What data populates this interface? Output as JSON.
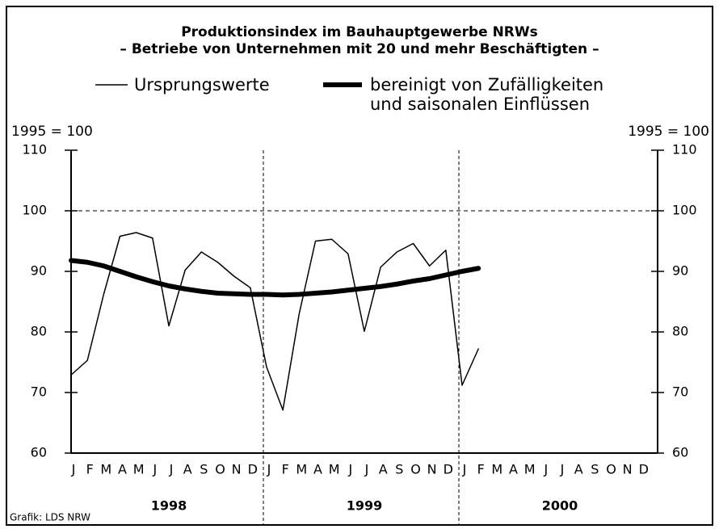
{
  "chart_data": {
    "type": "line",
    "title": "Produktionsindex im Bauhauptgewerbe NRWs",
    "subtitle": "– Betriebe von Unternehmen mit 20 und mehr Beschäftigten –",
    "y_label": "1995 = 100",
    "source": "Grafik: LDS NRW",
    "categories": [
      "J",
      "F",
      "M",
      "A",
      "M",
      "J",
      "J",
      "A",
      "S",
      "O",
      "N",
      "D",
      "J",
      "F",
      "M",
      "A",
      "M",
      "J",
      "J",
      "A",
      "S",
      "O",
      "N",
      "D",
      "J",
      "F",
      "M",
      "A",
      "M",
      "J",
      "J",
      "A",
      "S",
      "O",
      "N",
      "D"
    ],
    "year_labels": [
      "1998",
      "1999",
      "2000"
    ],
    "series": [
      {
        "name": "Ursprungswerte",
        "color": "#000000",
        "values": [
          72.9,
          75.3,
          86.2,
          95.8,
          96.4,
          95.5,
          81.0,
          90.2,
          93.2,
          91.5,
          89.2,
          87.3,
          74.2,
          67.1,
          83.0,
          95.0,
          95.3,
          92.9,
          80.1,
          90.7,
          93.2,
          94.6,
          90.9,
          93.5,
          71.2,
          77.2,
          null,
          null,
          null,
          null,
          null,
          null,
          null,
          null,
          null,
          null
        ]
      },
      {
        "name": "bereinigt von Zufälligkeiten und saisonalen Einflüssen",
        "color": "#000000",
        "values": [
          91.8,
          91.5,
          90.9,
          90.0,
          89.1,
          88.3,
          87.6,
          87.1,
          86.7,
          86.4,
          86.3,
          86.2,
          86.2,
          86.1,
          86.2,
          86.4,
          86.6,
          86.9,
          87.2,
          87.5,
          87.9,
          88.4,
          88.8,
          89.4,
          90.0,
          90.5,
          null,
          null,
          null,
          null,
          null,
          null,
          null,
          null,
          null,
          null
        ]
      }
    ],
    "ylim": [
      60,
      110
    ],
    "yticks": [
      60,
      70,
      80,
      90,
      100,
      110
    ],
    "grid_values": [
      100
    ]
  }
}
